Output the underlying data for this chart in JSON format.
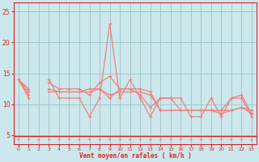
{
  "background_color": "#cce8ec",
  "line_color": "#f08080",
  "grid_color": "#a0c8cc",
  "axis_color": "#dd2222",
  "xlabel": "Vent moyen/en rafales ( km/h )",
  "xlim": [
    -0.5,
    23.5
  ],
  "ylim": [
    3.5,
    26.5
  ],
  "yticks": [
    5,
    10,
    15,
    20,
    25
  ],
  "xticks": [
    0,
    1,
    2,
    3,
    4,
    5,
    6,
    7,
    8,
    9,
    10,
    11,
    12,
    13,
    14,
    15,
    16,
    17,
    18,
    19,
    20,
    21,
    22,
    23
  ],
  "series1": [
    14,
    11,
    null,
    14,
    11,
    11,
    11,
    8,
    11,
    23,
    11,
    14,
    11,
    8,
    11,
    11,
    11,
    8,
    8,
    11,
    8,
    11,
    11,
    8
  ],
  "series2": [
    14,
    11.5,
    null,
    13.5,
    12.5,
    12.5,
    12.5,
    11.5,
    13.5,
    14.5,
    12.5,
    12.5,
    11.5,
    9.5,
    11,
    11,
    9,
    9,
    9,
    9,
    9,
    11,
    11.5,
    8.5
  ],
  "series3": [
    14,
    12,
    null,
    12.5,
    12,
    12,
    12,
    12,
    12.5,
    11.5,
    12,
    12,
    12,
    11.5,
    9,
    9,
    9,
    9,
    9,
    9,
    8.5,
    9,
    9.5,
    8.5
  ],
  "series4": [
    14,
    12.5,
    null,
    12,
    12,
    12,
    12,
    12.5,
    12.5,
    11,
    12.5,
    12.5,
    12.5,
    12,
    9,
    9,
    9,
    9,
    9,
    9,
    9,
    9,
    9.5,
    9
  ],
  "arrow_directions": [
    45,
    0,
    45,
    0,
    0,
    0,
    45,
    315,
    0,
    315,
    0,
    0,
    0,
    0,
    0,
    0,
    0,
    0,
    0,
    45,
    45,
    45,
    45,
    90
  ]
}
